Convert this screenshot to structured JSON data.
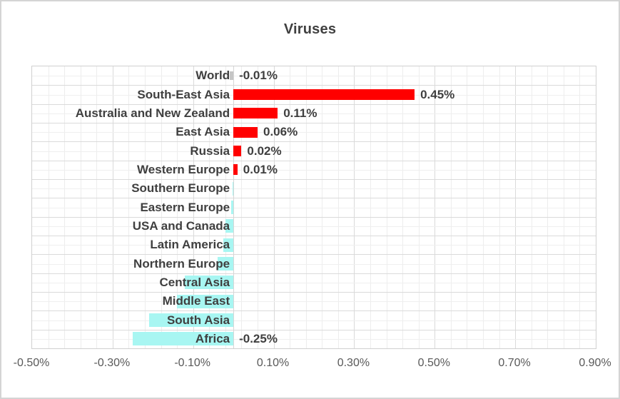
{
  "chart": {
    "title": "Viruses"
  },
  "chart_data": {
    "type": "bar",
    "orientation": "horizontal",
    "title": "Viruses",
    "xlabel": "",
    "ylabel": "",
    "unit": "percent",
    "xlim": [
      -0.5,
      0.9
    ],
    "x_major_step": 0.2,
    "x_minor_step": 0.04,
    "x_tick_values": [
      -0.5,
      -0.3,
      -0.1,
      0.1,
      0.3,
      0.5,
      0.7,
      0.9
    ],
    "x_tick_labels": [
      "-0.50%",
      "-0.30%",
      "-0.10%",
      "0.10%",
      "0.30%",
      "0.50%",
      "0.70%",
      "0.90%"
    ],
    "grid": {
      "vertical_major": true,
      "vertical_minor": true,
      "horizontal_major": true,
      "horizontal_minor": true
    },
    "legend": "none",
    "categories": [
      "World",
      "South-East Asia",
      "Australia and New Zealand",
      "East Asia",
      "Russia",
      "Western Europe",
      "Southern Europe",
      "Eastern Europe",
      "USA and Canada",
      "Latin America",
      "Northern Europe",
      "Central Asia",
      "Middle East",
      "South Asia",
      "Africa"
    ],
    "points": [
      {
        "category": "World",
        "value": -0.01,
        "label": "-0.01%",
        "color_key": "gray"
      },
      {
        "category": "South-East Asia",
        "value": 0.45,
        "label": "0.45%",
        "color_key": "red"
      },
      {
        "category": "Australia and New Zealand",
        "value": 0.11,
        "label": "0.11%",
        "color_key": "red"
      },
      {
        "category": "East Asia",
        "value": 0.06,
        "label": "0.06%",
        "color_key": "red"
      },
      {
        "category": "Russia",
        "value": 0.02,
        "label": "0.02%",
        "color_key": "red"
      },
      {
        "category": "Western Europe",
        "value": 0.01,
        "label": "0.01%",
        "color_key": "red"
      },
      {
        "category": "Southern Europe",
        "value": -0.002,
        "label": "",
        "color_key": "cyan"
      },
      {
        "category": "Eastern Europe",
        "value": -0.005,
        "label": "",
        "color_key": "cyan"
      },
      {
        "category": "USA and Canada",
        "value": -0.02,
        "label": "",
        "color_key": "cyan"
      },
      {
        "category": "Latin America",
        "value": -0.025,
        "label": "",
        "color_key": "cyan"
      },
      {
        "category": "Northern Europe",
        "value": -0.04,
        "label": "",
        "color_key": "cyan"
      },
      {
        "category": "Central Asia",
        "value": -0.12,
        "label": "",
        "color_key": "cyan"
      },
      {
        "category": "Middle East",
        "value": -0.14,
        "label": "",
        "color_key": "cyan"
      },
      {
        "category": "South Asia",
        "value": -0.21,
        "label": "",
        "color_key": "cyan"
      },
      {
        "category": "Africa",
        "value": -0.25,
        "label": "-0.25%",
        "color_key": "cyan"
      }
    ],
    "colors": {
      "red": "#FF0000",
      "cyan": "#A8F6F2",
      "gray": "#C5C5C5"
    },
    "bar_heights": {
      "red": 15,
      "cyan": 19,
      "gray": 12
    }
  }
}
